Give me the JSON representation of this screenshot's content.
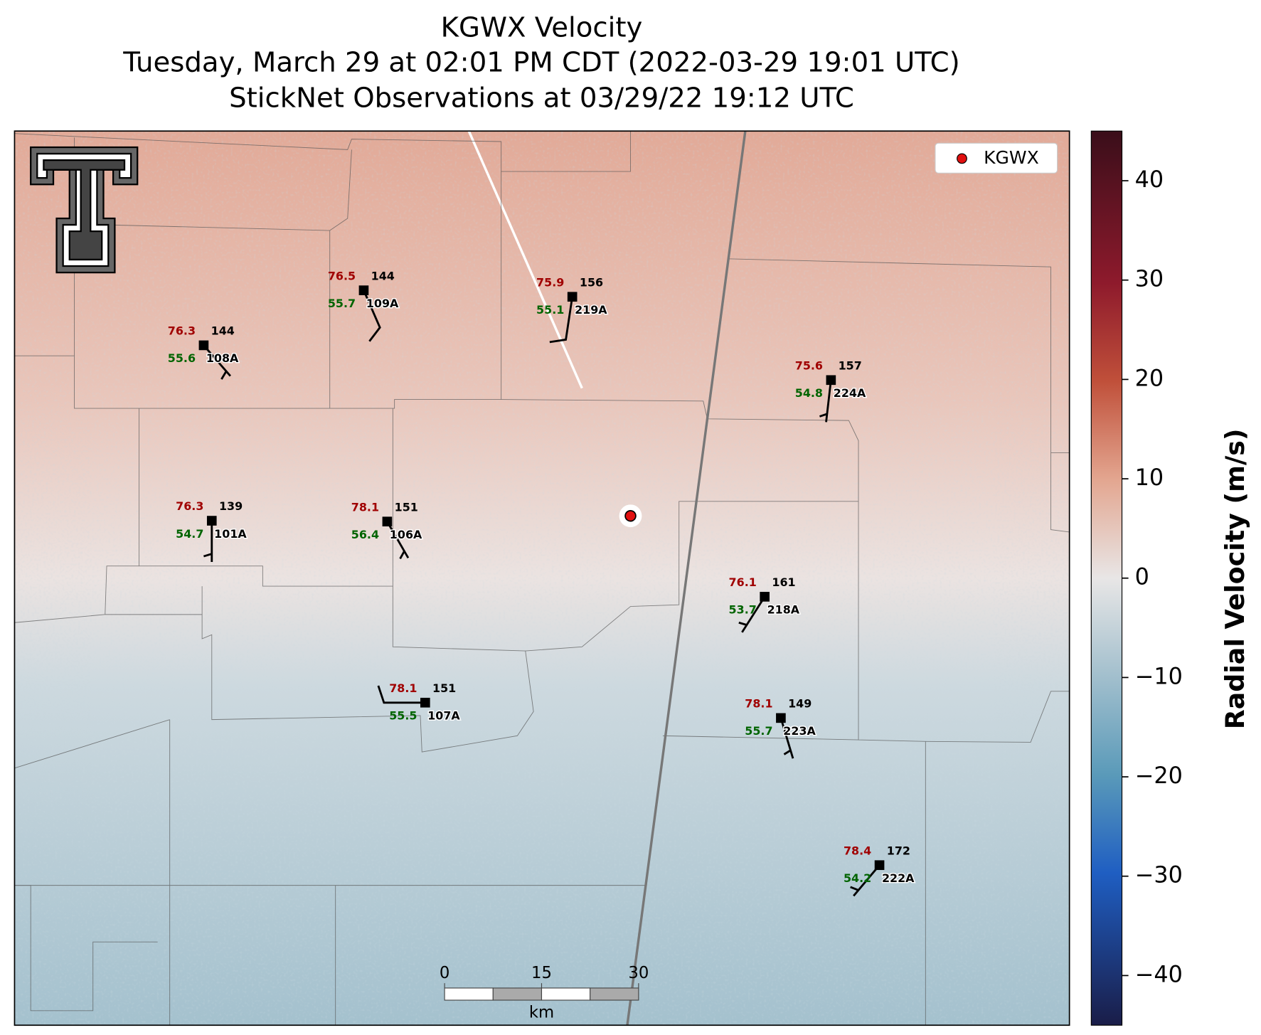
{
  "title_lines": [
    "KGWX Velocity",
    "Tuesday, March 29 at 02:01 PM CDT (2022-03-29 19:01 UTC)",
    "StickNet Observations at 03/29/22 19:12 UTC"
  ],
  "legend": {
    "label": "KGWX"
  },
  "colorbar": {
    "label": "Radial Velocity (m/s)",
    "lim": [
      -45,
      45
    ],
    "ticks": [
      40,
      30,
      20,
      10,
      0,
      {
        "value": -10,
        "label": "−10"
      },
      {
        "value": -20,
        "label": "−20"
      },
      {
        "value": -30,
        "label": "−30"
      },
      {
        "value": -40,
        "label": "−40"
      }
    ]
  },
  "scale_bar": {
    "ticks": [
      0,
      15,
      30
    ],
    "unit": "km"
  },
  "stations": [
    {
      "temp": "76.5",
      "pressure": "144",
      "dewpoint": "55.7",
      "id": "109A"
    },
    {
      "temp": "75.9",
      "pressure": "156",
      "dewpoint": "55.1",
      "id": "219A"
    },
    {
      "temp": "76.3",
      "pressure": "144",
      "dewpoint": "55.6",
      "id": "108A"
    },
    {
      "temp": "75.6",
      "pressure": "157",
      "dewpoint": "54.8",
      "id": "224A"
    },
    {
      "temp": "76.3",
      "pressure": "139",
      "dewpoint": "54.7",
      "id": "101A"
    },
    {
      "temp": "78.1",
      "pressure": "151",
      "dewpoint": "56.4",
      "id": "106A"
    },
    {
      "temp": "76.1",
      "pressure": "161",
      "dewpoint": "53.7",
      "id": "218A"
    },
    {
      "temp": "78.1",
      "pressure": "151",
      "dewpoint": "55.5",
      "id": "107A"
    },
    {
      "temp": "78.1",
      "pressure": "149",
      "dewpoint": "55.7",
      "id": "223A"
    },
    {
      "temp": "78.4",
      "pressure": "172",
      "dewpoint": "54.2",
      "id": "222A"
    }
  ]
}
